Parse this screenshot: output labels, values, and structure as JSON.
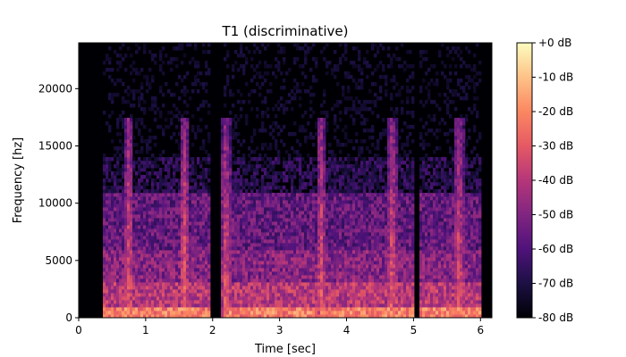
{
  "chart_data": {
    "type": "heatmap",
    "title": "T1 (discriminative)",
    "xlabel": "Time [sec]",
    "ylabel": "Frequency [hz]",
    "xlim": [
      0,
      6.17
    ],
    "ylim": [
      0,
      24000
    ],
    "x_ticks": [
      0,
      1,
      2,
      3,
      4,
      5,
      6
    ],
    "y_ticks": [
      0,
      5000,
      10000,
      15000,
      20000
    ],
    "colormap": "magma",
    "colorbar": {
      "range": [
        -80,
        0
      ],
      "ticks": [
        0,
        -10,
        -20,
        -30,
        -40,
        -50,
        -60,
        -70,
        -80
      ],
      "tick_labels": [
        "+0 dB",
        "-10 dB",
        "-20 dB",
        "-30 dB",
        "-40 dB",
        "-50 dB",
        "-60 dB",
        "-70 dB",
        "-80 dB"
      ]
    },
    "speech_segments_sec": [
      [
        0.35,
        1.95
      ],
      [
        2.15,
        3.55
      ],
      [
        3.62,
        5.0
      ],
      [
        5.1,
        6.0
      ]
    ],
    "bright_bursts_sec": [
      0.75,
      1.58,
      2.2,
      3.62,
      4.68,
      5.68
    ]
  }
}
